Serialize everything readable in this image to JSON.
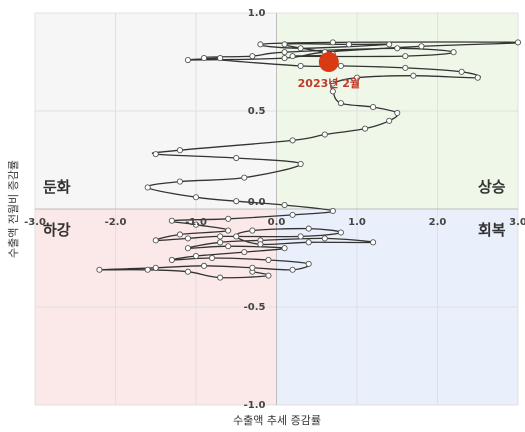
{
  "chart_data": {
    "type": "line",
    "xlabel": "수출액 추세 증감률",
    "ylabel": "수출액 전월비 증감률",
    "xlim": [
      -3.0,
      3.0
    ],
    "ylim": [
      -1.0,
      1.0
    ],
    "x_ticks": [
      "-3.0",
      "-2.0",
      "-1.0",
      "0.0",
      "1.0",
      "2.0",
      "3.0"
    ],
    "y_ticks": [
      "1.0",
      "0.5",
      "0.0",
      "-0.5",
      "-1.0"
    ],
    "grid": true,
    "quadrants": {
      "top_left": {
        "label": "둔화",
        "color": "#f6f6f6"
      },
      "top_right": {
        "label": "상승",
        "color": "#eef7e8"
      },
      "bottom_left": {
        "label": "하강",
        "color": "#fbe8e8"
      },
      "bottom_right": {
        "label": "회복",
        "color": "#e9f0fb"
      }
    },
    "highlight": {
      "label": "2023년 2월",
      "x": 0.65,
      "y": 0.75,
      "color": "#d93a12"
    },
    "series": [
      {
        "color": "#333333",
        "points": [
          [
            -0.3,
            -0.32
          ],
          [
            -0.1,
            -0.34
          ],
          [
            -0.7,
            -0.35
          ],
          [
            -1.1,
            -0.32
          ],
          [
            -1.6,
            -0.31
          ],
          [
            -2.2,
            -0.31
          ],
          [
            -1.5,
            -0.3
          ],
          [
            -0.9,
            -0.29
          ],
          [
            -0.3,
            -0.3
          ],
          [
            0.2,
            -0.31
          ],
          [
            0.4,
            -0.28
          ],
          [
            -0.1,
            -0.26
          ],
          [
            -0.8,
            -0.25
          ],
          [
            -1.3,
            -0.26
          ],
          [
            -1.0,
            -0.24
          ],
          [
            -0.4,
            -0.22
          ],
          [
            0.1,
            -0.2
          ],
          [
            -0.6,
            -0.19
          ],
          [
            -1.1,
            -0.2
          ],
          [
            -0.7,
            -0.17
          ],
          [
            -0.2,
            -0.16
          ],
          [
            0.6,
            -0.15
          ],
          [
            1.2,
            -0.17
          ],
          [
            0.4,
            -0.17
          ],
          [
            -0.2,
            -0.18
          ],
          [
            -0.5,
            -0.14
          ],
          [
            -0.3,
            -0.11
          ],
          [
            0.4,
            -0.1
          ],
          [
            0.8,
            -0.12
          ],
          [
            0.3,
            -0.14
          ],
          [
            -0.7,
            -0.14
          ],
          [
            -1.1,
            -0.15
          ],
          [
            -1.5,
            -0.16
          ],
          [
            -1.2,
            -0.13
          ],
          [
            -0.6,
            -0.11
          ],
          [
            -1.0,
            -0.08
          ],
          [
            -1.3,
            -0.06
          ],
          [
            -0.6,
            -0.05
          ],
          [
            0.2,
            -0.03
          ],
          [
            0.7,
            -0.01
          ],
          [
            0.1,
            0.02
          ],
          [
            -0.5,
            0.04
          ],
          [
            -1.0,
            0.06
          ],
          [
            -1.6,
            0.11
          ],
          [
            -1.2,
            0.14
          ],
          [
            -0.4,
            0.16
          ],
          [
            0.3,
            0.23
          ],
          [
            -0.5,
            0.26
          ],
          [
            -1.5,
            0.28
          ],
          [
            -1.2,
            0.3
          ],
          [
            0.2,
            0.35
          ],
          [
            0.6,
            0.38
          ],
          [
            1.1,
            0.41
          ],
          [
            1.4,
            0.45
          ],
          [
            1.5,
            0.49
          ],
          [
            1.2,
            0.52
          ],
          [
            0.8,
            0.54
          ],
          [
            0.7,
            0.6
          ],
          [
            0.7,
            0.64
          ],
          [
            1.0,
            0.67
          ],
          [
            1.7,
            0.68
          ],
          [
            2.5,
            0.67
          ],
          [
            2.3,
            0.7
          ],
          [
            1.6,
            0.72
          ],
          [
            0.8,
            0.73
          ],
          [
            0.3,
            0.73
          ],
          [
            -0.9,
            0.77
          ],
          [
            -0.3,
            0.78
          ],
          [
            0.1,
            0.8
          ],
          [
            1.5,
            0.82
          ],
          [
            2.2,
            0.8
          ],
          [
            1.6,
            0.78
          ],
          [
            0.2,
            0.78
          ],
          [
            0.7,
            0.79
          ],
          [
            0.1,
            0.84
          ],
          [
            0.9,
            0.84
          ],
          [
            1.4,
            0.84
          ],
          [
            0.3,
            0.82
          ],
          [
            -0.2,
            0.84
          ],
          [
            0.7,
            0.85
          ],
          [
            3.0,
            0.85
          ],
          [
            1.8,
            0.83
          ],
          [
            0.6,
            0.8
          ],
          [
            0.1,
            0.77
          ],
          [
            -1.1,
            0.76
          ],
          [
            -0.7,
            0.77
          ]
        ]
      }
    ]
  }
}
